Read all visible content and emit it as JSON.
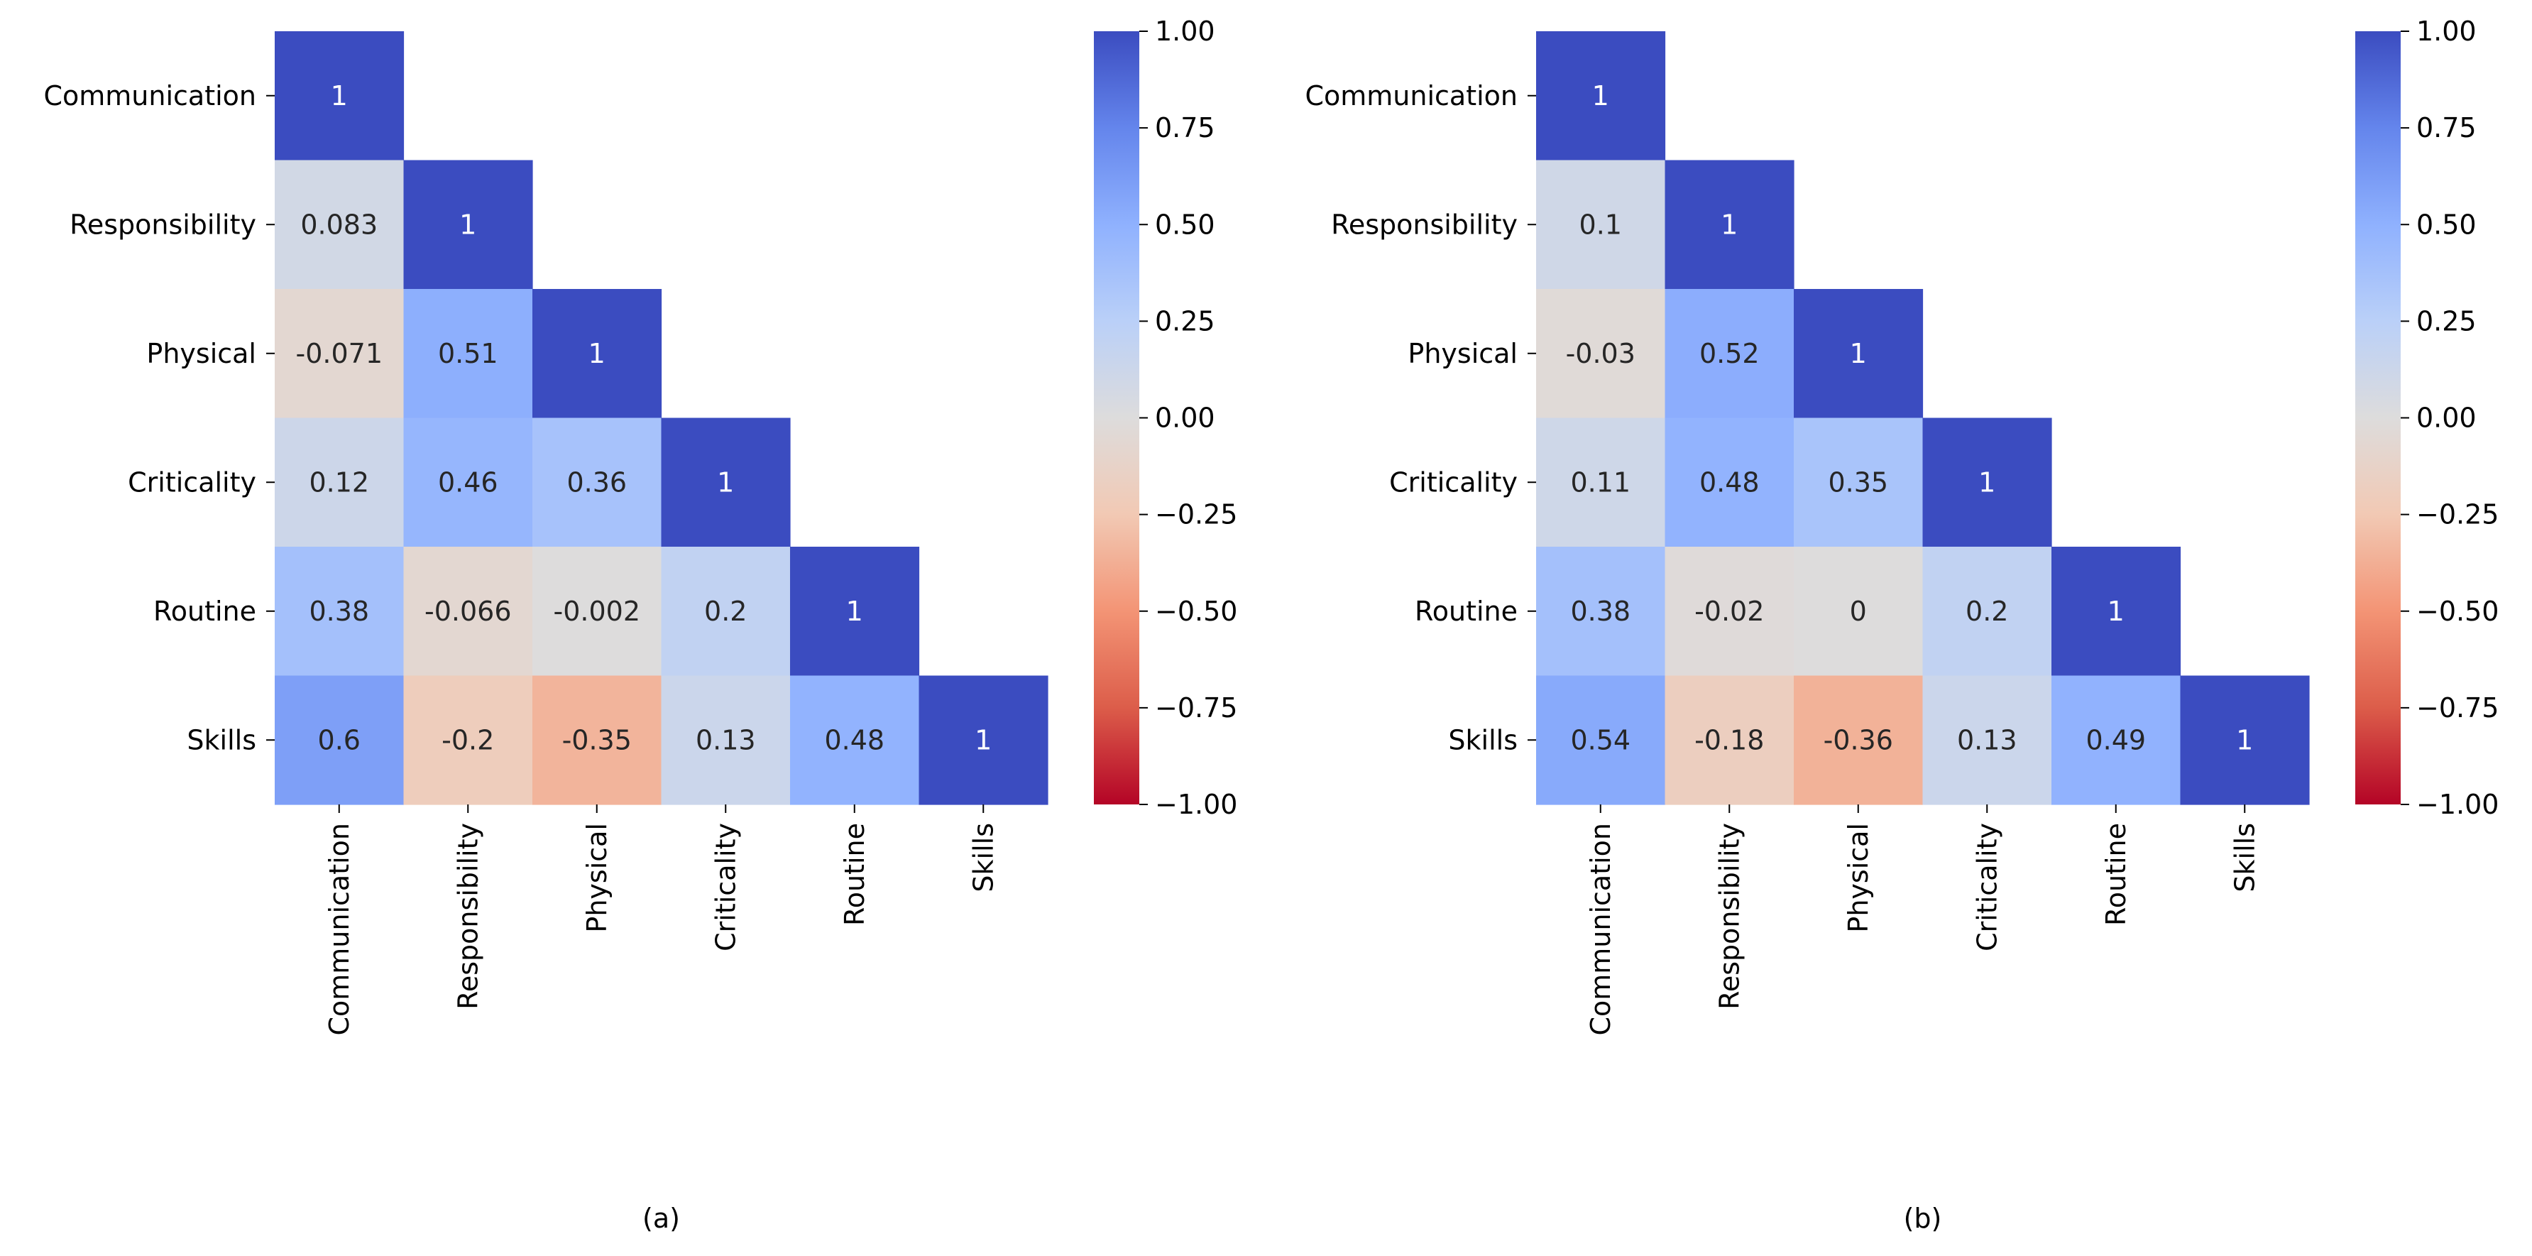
{
  "chart_data": [
    {
      "type": "heatmap",
      "panel_label": "(a)",
      "categories": [
        "Communication",
        "Responsibility",
        "Physical",
        "Criticality",
        "Routine",
        "Skills"
      ],
      "matrix": [
        [
          1
        ],
        [
          0.083,
          1
        ],
        [
          -0.071,
          0.51,
          1
        ],
        [
          0.12,
          0.46,
          0.36,
          1
        ],
        [
          0.38,
          -0.066,
          -0.002,
          0.2,
          1
        ],
        [
          0.6,
          -0.2,
          -0.35,
          0.13,
          0.48,
          1
        ]
      ],
      "matrix_text": [
        [
          "1"
        ],
        [
          "0.083",
          "1"
        ],
        [
          "-0.071",
          "0.51",
          "1"
        ],
        [
          "0.12",
          "0.46",
          "0.36",
          "1"
        ],
        [
          "0.38",
          "-0.066",
          "-0.002",
          "0.2",
          "1"
        ],
        [
          "0.6",
          "-0.2",
          "-0.35",
          "0.13",
          "0.48",
          "1"
        ]
      ],
      "mask": "upper-triangle",
      "colormap": "coolwarm_r",
      "vmin": -1,
      "vmax": 1,
      "colorbar_ticks": [
        1,
        0.75,
        0.5,
        0.25,
        0,
        -0.25,
        -0.5,
        -0.75,
        -1
      ],
      "colorbar_tick_labels": [
        "1.00",
        "0.75",
        "0.50",
        "0.25",
        "0.00",
        "−0.25",
        "−0.50",
        "−0.75",
        "−1.00"
      ]
    },
    {
      "type": "heatmap",
      "panel_label": "(b)",
      "categories": [
        "Communication",
        "Responsibility",
        "Physical",
        "Criticality",
        "Routine",
        "Skills"
      ],
      "matrix": [
        [
          1
        ],
        [
          0.1,
          1
        ],
        [
          -0.03,
          0.52,
          1
        ],
        [
          0.11,
          0.48,
          0.35,
          1
        ],
        [
          0.38,
          -0.02,
          0,
          0.2,
          1
        ],
        [
          0.54,
          -0.18,
          -0.36,
          0.13,
          0.49,
          1
        ]
      ],
      "matrix_text": [
        [
          "1"
        ],
        [
          "0.1",
          "1"
        ],
        [
          "-0.03",
          "0.52",
          "1"
        ],
        [
          "0.11",
          "0.48",
          "0.35",
          "1"
        ],
        [
          "0.38",
          "-0.02",
          "0",
          "0.2",
          "1"
        ],
        [
          "0.54",
          "-0.18",
          "-0.36",
          "0.13",
          "0.49",
          "1"
        ]
      ],
      "mask": "upper-triangle",
      "colormap": "coolwarm_r",
      "vmin": -1,
      "vmax": 1,
      "colorbar_ticks": [
        1,
        0.75,
        0.5,
        0.25,
        0,
        -0.25,
        -0.5,
        -0.75,
        -1
      ],
      "colorbar_tick_labels": [
        "1.00",
        "0.75",
        "0.50",
        "0.25",
        "0.00",
        "−0.25",
        "−0.50",
        "−0.75",
        "−1.00"
      ]
    }
  ]
}
